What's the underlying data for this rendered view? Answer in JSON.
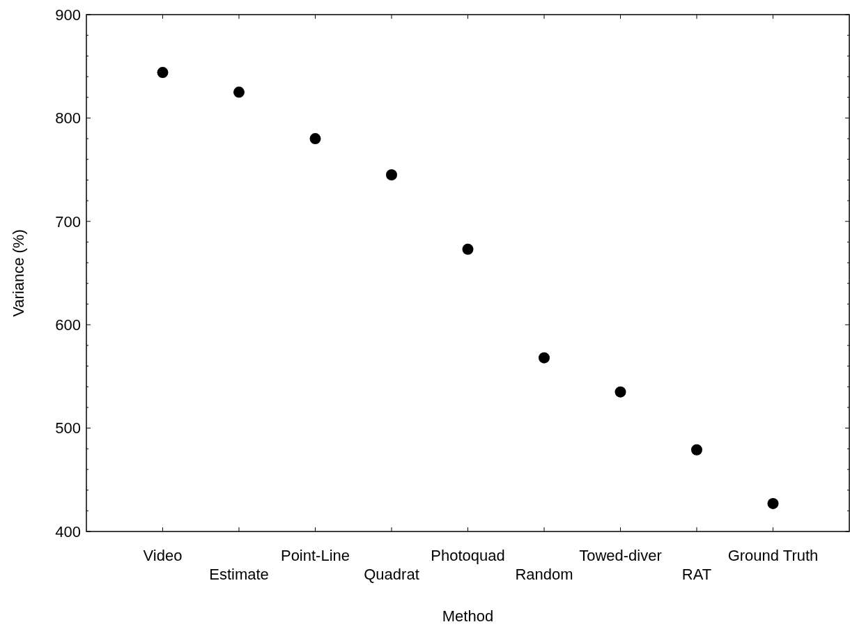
{
  "chart_data": {
    "type": "scatter",
    "xlabel": "Method",
    "ylabel": "Variance (%)",
    "categories": [
      "Video",
      "Estimate",
      "Point-Line",
      "Quadrat",
      "Photoquad",
      "Random",
      "Towed-diver",
      "RAT",
      "Ground Truth"
    ],
    "values": [
      844,
      825,
      780,
      745,
      673,
      568,
      535,
      479,
      427
    ],
    "color": "#000000",
    "marker": "circle",
    "grid": false,
    "ylim": [
      400,
      900
    ],
    "yticks": [
      400,
      {
        "value": 420,
        "label": null
      },
      {
        "value": 440,
        "label": null
      },
      {
        "value": 460,
        "label": null
      },
      {
        "value": 480,
        "label": null
      },
      500,
      {
        "value": 520,
        "label": null
      },
      {
        "value": 540,
        "label": null
      },
      {
        "value": 560,
        "label": null
      },
      {
        "value": 580,
        "label": null
      },
      600,
      {
        "value": 620,
        "label": null
      },
      {
        "value": 640,
        "label": null
      },
      {
        "value": 660,
        "label": null
      },
      {
        "value": 680,
        "label": null
      },
      700,
      {
        "value": 720,
        "label": null
      },
      {
        "value": 740,
        "label": null
      },
      {
        "value": 760,
        "label": null
      },
      {
        "value": 780,
        "label": null
      },
      800,
      {
        "value": 820,
        "label": null
      },
      {
        "value": 840,
        "label": null
      },
      {
        "value": 860,
        "label": null
      },
      {
        "value": 880,
        "label": null
      },
      900
    ]
  }
}
